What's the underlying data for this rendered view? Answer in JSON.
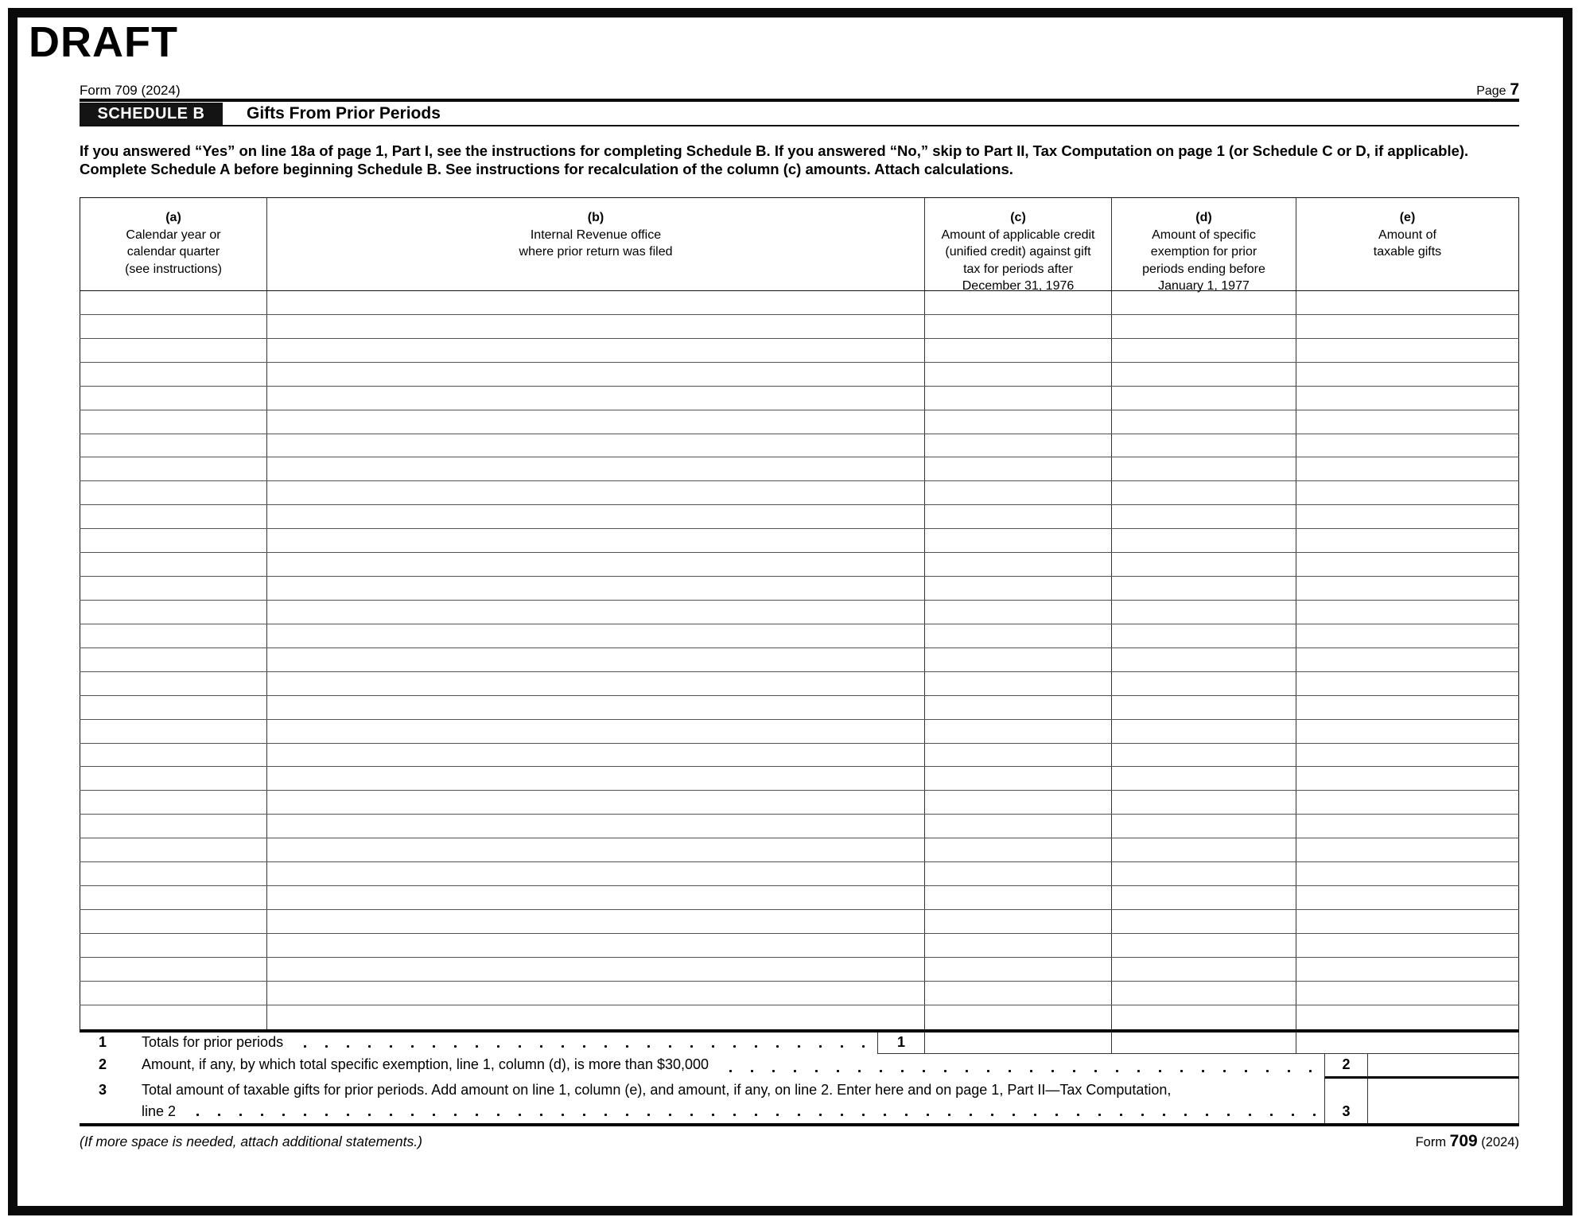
{
  "page": {
    "draft_label": "DRAFT",
    "form_id_top": "Form 709 (2024)",
    "page_label": "Page",
    "page_number": "7",
    "footer_note": "(If more space is needed, attach additional statements.)",
    "footer_form_prefix": "Form",
    "footer_form_number": "709",
    "footer_form_year": "(2024)"
  },
  "colors": {
    "ink": "#000000",
    "badge_bg": "#141414",
    "paper": "#ffffff"
  },
  "schedule": {
    "badge": "SCHEDULE B",
    "title": "Gifts From Prior Periods",
    "instructions": "If you answered “Yes” on line 18a of page 1, Part I, see the instructions for completing Schedule B. If you answered “No,” skip to Part II, Tax Computation on page 1 (or Schedule C or D, if applicable). Complete Schedule A before beginning Schedule B. See instructions for recalculation of the column (c) amounts. Attach calculations."
  },
  "table": {
    "empty_row_count": 31,
    "columns": [
      {
        "letter": "(a)",
        "text": "Calendar year or\ncalendar quarter\n(see instructions)"
      },
      {
        "letter": "(b)",
        "text": "Internal Revenue office\nwhere prior return was filed"
      },
      {
        "letter": "(c)",
        "text": "Amount of applicable credit\n(unified credit) against gift\ntax for periods after\nDecember 31, 1976"
      },
      {
        "letter": "(d)",
        "text": "Amount of specific\nexemption for prior\nperiods ending before\nJanuary 1, 1977"
      },
      {
        "letter": "(e)",
        "text": "Amount of\ntaxable gifts"
      }
    ]
  },
  "lines": {
    "line1": {
      "number": "1",
      "label": "Totals for prior periods",
      "box": "1",
      "value_c": "",
      "value_d": "",
      "value_e": ""
    },
    "line2": {
      "number": "2",
      "label": "Amount, if any, by which total specific exemption, line 1, column (d), is more than $30,000",
      "box": "2",
      "value": ""
    },
    "line3": {
      "number": "3",
      "label": "Total amount of taxable gifts for prior periods. Add amount on line 1, column (e), and amount, if any, on line 2. Enter here and on page 1, Part II—Tax Computation,",
      "label2": "line 2",
      "box": "3",
      "value": ""
    }
  }
}
